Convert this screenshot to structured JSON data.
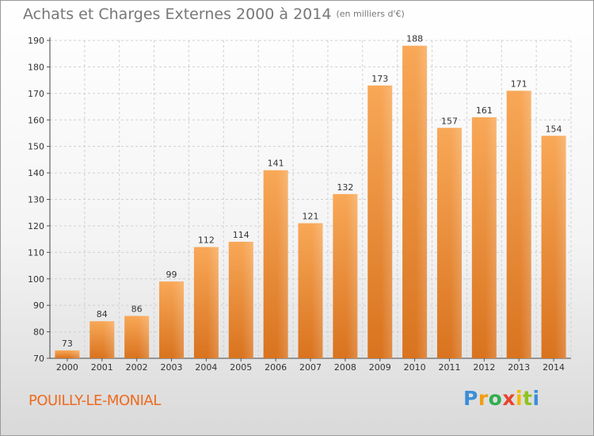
{
  "header": {
    "title": "Achats et Charges Externes 2000 à 2014",
    "unit": "(en milliers d'€)"
  },
  "footer": {
    "commune": "POUILLY-LE-MONIAL",
    "logo": "Proxiti"
  },
  "chart_data": {
    "type": "bar",
    "title": "Achats et Charges Externes 2000 à 2014",
    "subtitle": "(en milliers d'€)",
    "categories": [
      "2000",
      "2001",
      "2002",
      "2003",
      "2004",
      "2005",
      "2006",
      "2007",
      "2008",
      "2009",
      "2010",
      "2011",
      "2012",
      "2013",
      "2014"
    ],
    "values": [
      73,
      84,
      86,
      99,
      112,
      114,
      141,
      121,
      132,
      173,
      188,
      157,
      161,
      171,
      154
    ],
    "ylim": [
      70,
      190
    ],
    "yticks": [
      70,
      80,
      90,
      100,
      110,
      120,
      130,
      140,
      150,
      160,
      170,
      180,
      190
    ],
    "grid": true,
    "colors": {
      "bar_top": "#f8a857",
      "bar_bottom": "#d9731f",
      "grid": "#d0d0d0"
    }
  }
}
